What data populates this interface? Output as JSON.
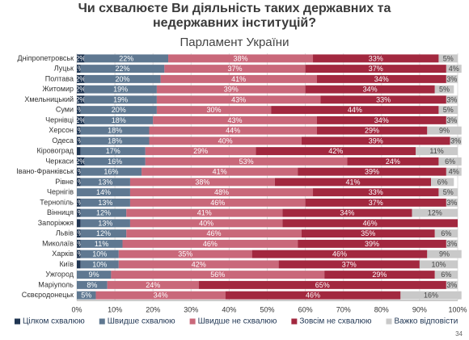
{
  "chart_data": {
    "type": "stacked-bar-horizontal",
    "title": "Чи схвалюєте Ви діяльність таких державних та недержавних інституцій?",
    "subtitle": "Парламент України",
    "categories": [
      "Дніпропетровськ",
      "Луцьк",
      "Полтава",
      "Житомир",
      "Хмельницький",
      "Суми",
      "Чернівці",
      "Херсон",
      "Одеса",
      "Кіровоград",
      "Черкаси",
      "Івано-Франківськ",
      "Рівне",
      "Чернігів",
      "Тернопіль",
      "Вінниця",
      "Запоріжжя",
      "Львів",
      "Миколаїв",
      "Харків",
      "Київ",
      "Ужгород",
      "Маріуполь",
      "Сєвєродонецьк"
    ],
    "series": [
      {
        "name": "Цілком схвалюю",
        "color": "#1f3552",
        "values": [
          2,
          1,
          2,
          2,
          2,
          1,
          2,
          1,
          1,
          1,
          2,
          1,
          1,
          0,
          1,
          1,
          1,
          1,
          1,
          1,
          1,
          0,
          0,
          0
        ],
        "value_labels": [
          "2%",
          "1%",
          "2%",
          "2%",
          "2%",
          "1%",
          "2%",
          "1%",
          "1%",
          null,
          "2%",
          "1%",
          "1%",
          null,
          "1%",
          "1%",
          null,
          "1%",
          "1%",
          "1%",
          null,
          null,
          null,
          null
        ]
      },
      {
        "name": "Швидше схвалюю",
        "color": "#5f7891",
        "values": [
          22,
          22,
          20,
          19,
          19,
          20,
          18,
          18,
          18,
          17,
          16,
          16,
          13,
          14,
          13,
          12,
          13,
          12,
          11,
          10,
          10,
          9,
          8,
          5
        ],
        "value_labels": [
          "22%",
          "22%",
          "20%",
          "19%",
          "19%",
          "20%",
          "18%",
          "18%",
          "18%",
          "17%",
          "16%",
          "16%",
          "13%",
          "14%",
          "13%",
          "12%",
          "13%",
          "12%",
          "11%",
          "10%",
          "10%",
          "9%",
          "8%",
          "5%"
        ]
      },
      {
        "name": "Швидше не схвалюю",
        "color": "#c9687a",
        "values": [
          38,
          37,
          41,
          39,
          43,
          30,
          43,
          44,
          40,
          29,
          53,
          41,
          38,
          48,
          46,
          41,
          40,
          46,
          46,
          35,
          42,
          56,
          24,
          34
        ],
        "value_labels": [
          "38%",
          "37%",
          "41%",
          "39%",
          "43%",
          "30%",
          "43%",
          "44%",
          "40%",
          "29%",
          "53%",
          "41%",
          "38%",
          "48%",
          "46%",
          "41%",
          "40%",
          "46%",
          "46%",
          "35%",
          "42%",
          "56%",
          "24%",
          "34%"
        ]
      },
      {
        "name": "Зовсім не схвалюю",
        "color": "#a2283f",
        "values": [
          33,
          37,
          34,
          34,
          33,
          44,
          34,
          29,
          39,
          42,
          24,
          39,
          41,
          33,
          37,
          34,
          46,
          35,
          39,
          46,
          37,
          29,
          65,
          46
        ],
        "value_labels": [
          "33%",
          "37%",
          "34%",
          "34%",
          "33%",
          "44%",
          "34%",
          "29%",
          "39%",
          "42%",
          "24%",
          "39%",
          "41%",
          "33%",
          "37%",
          "34%",
          "46%",
          "35%",
          "39%",
          "46%",
          "37%",
          "29%",
          "65%",
          "46%"
        ]
      },
      {
        "name": "Важко відповісти",
        "color": "#c9c9c9",
        "values": [
          5,
          4,
          3,
          5,
          3,
          5,
          3,
          9,
          3,
          11,
          6,
          4,
          6,
          5,
          3,
          12,
          0,
          6,
          3,
          9,
          10,
          6,
          3,
          16
        ],
        "value_labels": [
          "5%",
          "4%",
          "3%",
          "5%",
          "3%",
          "5%",
          "3%",
          "9%",
          "3%",
          "11%",
          "6%",
          "4%",
          "6%",
          "5%",
          "3%",
          "12%",
          null,
          "6%",
          "3%",
          "9%",
          "10%",
          "6%",
          "3%",
          "16%"
        ]
      }
    ],
    "xlim": [
      0,
      100
    ],
    "xticks": [
      {
        "value": 0,
        "label": "0%"
      },
      {
        "value": 10,
        "label": "10%"
      },
      {
        "value": 20,
        "label": "20%"
      },
      {
        "value": 30,
        "label": "30%"
      },
      {
        "value": 40,
        "label": "40%"
      },
      {
        "value": 50,
        "label": "50%"
      },
      {
        "value": 60,
        "label": "60%"
      },
      {
        "value": 70,
        "label": "70%"
      },
      {
        "value": 80,
        "label": "80%"
      },
      {
        "value": 90,
        "label": "90%"
      },
      {
        "value": 100,
        "label": "100%"
      }
    ],
    "grid": true,
    "legend": "bottom"
  },
  "footer": {
    "page_number": "34"
  }
}
